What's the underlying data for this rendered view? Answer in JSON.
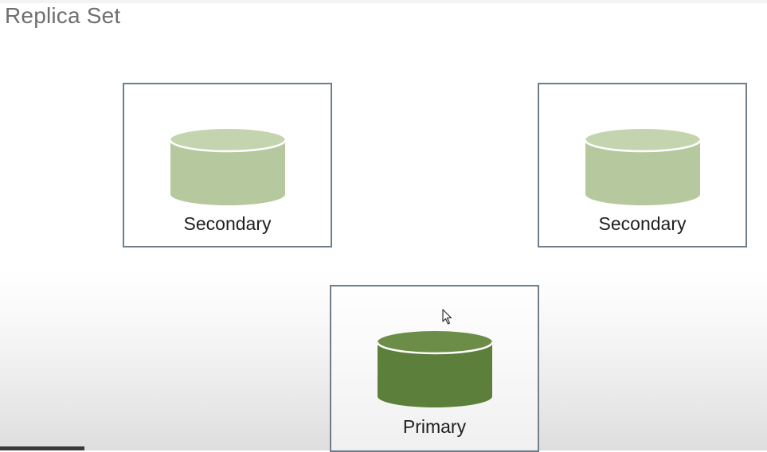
{
  "slide": {
    "title": "Replica Set"
  },
  "nodes": [
    {
      "label": "Secondary",
      "role": "secondary",
      "icon": "database-icon",
      "fill": "#b6c99e",
      "fill_top": "#c3d4ae"
    },
    {
      "label": "Secondary",
      "role": "secondary",
      "icon": "database-icon",
      "fill": "#b6c99e",
      "fill_top": "#c3d4ae"
    },
    {
      "label": "Primary",
      "role": "primary",
      "icon": "database-icon",
      "fill": "#5c7f3b",
      "fill_top": "#6b8d48"
    }
  ],
  "colors": {
    "border": "#6f7f8a",
    "title_text": "#6f6f6f",
    "label_text": "#1f1f1f"
  }
}
